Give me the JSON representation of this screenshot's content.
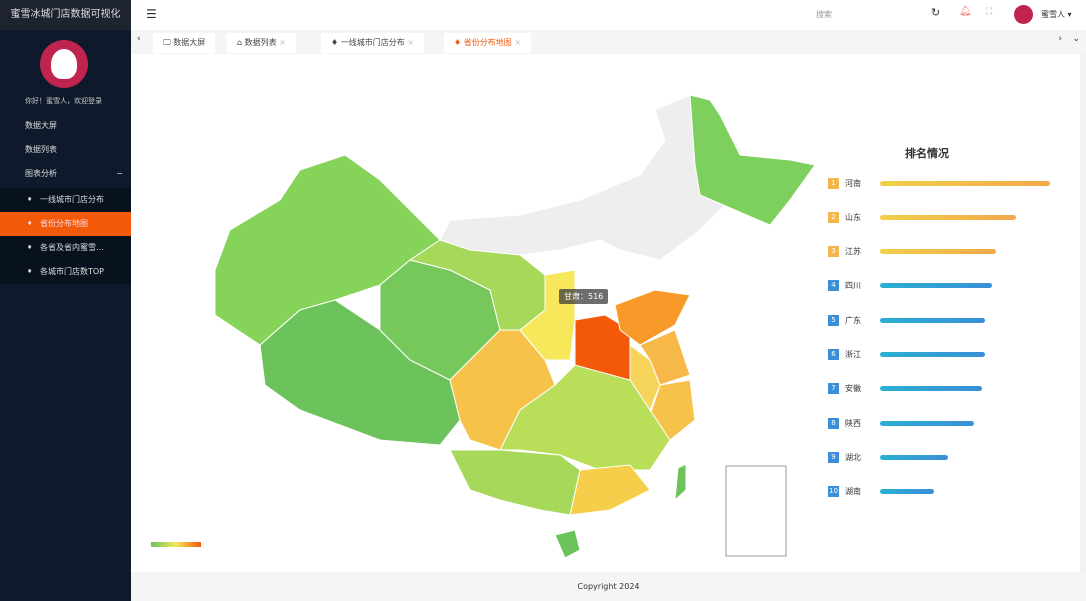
{
  "sidebar": {
    "title": "蜜雪冰城门店数据可视化",
    "welcome": "你好！蜜雪人，欢迎登录",
    "items": [
      {
        "label": "数据大屏"
      },
      {
        "label": "数据列表"
      },
      {
        "label": "图表分析"
      }
    ],
    "sub_items": [
      {
        "label": "一线城市门店分布"
      },
      {
        "label": "省份分布地图"
      },
      {
        "label": "各省及省内蜜雪..."
      },
      {
        "label": "各城市门店数TOP"
      }
    ]
  },
  "header": {
    "search_placeholder": "搜索",
    "user": "蜜雪人"
  },
  "tabs": [
    {
      "label": "数据大屏"
    },
    {
      "label": "数据列表"
    },
    {
      "label": "一线城市门店分布"
    },
    {
      "label": "省份分布地图",
      "active": true
    }
  ],
  "map": {
    "tooltip": "甘肃：516",
    "accent": "#f25a0a"
  },
  "ranking": {
    "title": "排名情况",
    "items": [
      {
        "rank": "1",
        "name": "河南",
        "value": 1.0
      },
      {
        "rank": "2",
        "name": "山东",
        "value": 0.8
      },
      {
        "rank": "3",
        "name": "江苏",
        "value": 0.68
      },
      {
        "rank": "4",
        "name": "四川",
        "value": 0.66
      },
      {
        "rank": "5",
        "name": "广东",
        "value": 0.62
      },
      {
        "rank": "6",
        "name": "浙江",
        "value": 0.62
      },
      {
        "rank": "7",
        "name": "安徽",
        "value": 0.6
      },
      {
        "rank": "8",
        "name": "陕西",
        "value": 0.55
      },
      {
        "rank": "9",
        "name": "湖北",
        "value": 0.4
      },
      {
        "rank": "10",
        "name": "湖南",
        "value": 0.32
      }
    ]
  },
  "footer": "Copyright 2024"
}
